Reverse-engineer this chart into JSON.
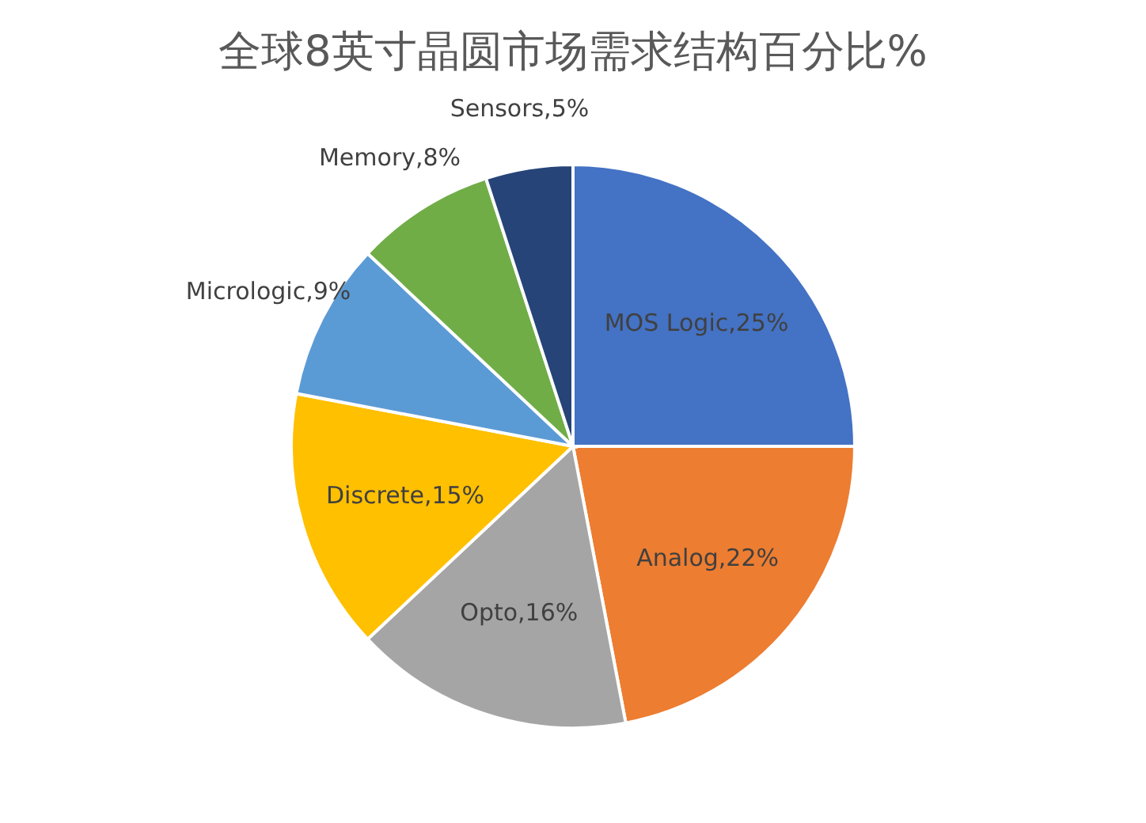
{
  "chart_data": {
    "type": "pie",
    "title": "全球8英寸晶圆市场需求结构百分比%",
    "categories": [
      "MOS Logic",
      "Analog",
      "Opto",
      "Discrete",
      "Micrologic",
      "Memory",
      "Sensors"
    ],
    "values": [
      25,
      22,
      16,
      15,
      9,
      8,
      5
    ],
    "colors": [
      "#4472c4",
      "#ed7d31",
      "#a5a5a5",
      "#ffc000",
      "#5b9bd5",
      "#70ad47",
      "#264478"
    ],
    "value_labels": [
      "25%",
      "22%",
      "16%",
      "15%",
      "9%",
      "8%",
      "5%"
    ],
    "legend": false
  }
}
